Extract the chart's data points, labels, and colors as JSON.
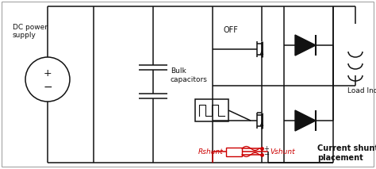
{
  "bg_color": "#ffffff",
  "line_color": "#111111",
  "red_color": "#cc0000",
  "figsize": [
    4.74,
    2.13
  ],
  "dpi": 100,
  "texts": {
    "dc_power": "DC power\nsupply",
    "bulk_cap": "Bulk\ncapacitors",
    "off_label": "OFF",
    "load_inductor": "Load Inductor",
    "rshunt": "Rshunt",
    "vshunt": "Vshunt",
    "current_shunt": "Current shunt\nplacement",
    "plus": "+",
    "minus": "−"
  }
}
